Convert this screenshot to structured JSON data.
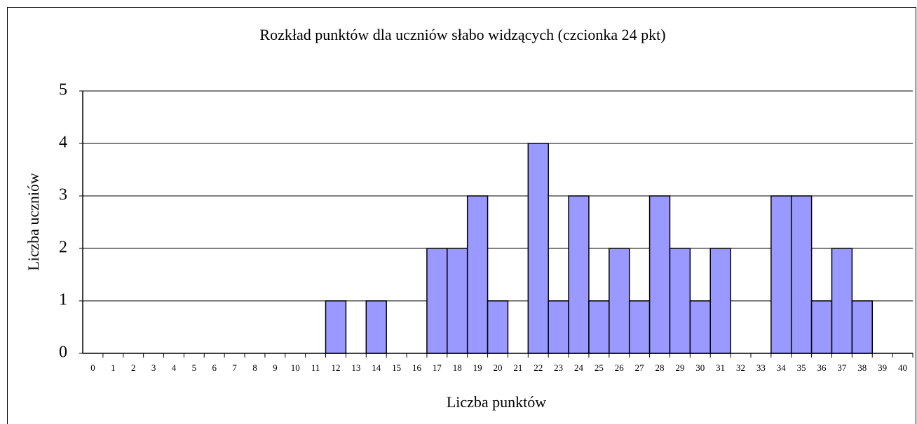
{
  "chart_data": {
    "type": "bar",
    "title": "Rozkład punktów dla uczniów słabo widzących (czcionka 24 pkt)",
    "x_label": "Liczba punktów",
    "y_label": "Liczba uczniów",
    "categories": [
      "0",
      "1",
      "2",
      "3",
      "4",
      "5",
      "6",
      "7",
      "8",
      "9",
      "10",
      "11",
      "12",
      "13",
      "14",
      "15",
      "16",
      "17",
      "18",
      "19",
      "20",
      "21",
      "22",
      "23",
      "24",
      "25",
      "26",
      "27",
      "28",
      "29",
      "30",
      "31",
      "32",
      "33",
      "34",
      "35",
      "36",
      "37",
      "38",
      "39",
      "40"
    ],
    "values": [
      0,
      0,
      0,
      0,
      0,
      0,
      0,
      0,
      0,
      0,
      0,
      0,
      1,
      0,
      1,
      0,
      0,
      2,
      2,
      3,
      1,
      0,
      4,
      1,
      3,
      1,
      2,
      1,
      3,
      2,
      1,
      2,
      0,
      0,
      3,
      3,
      1,
      2,
      1,
      0,
      0
    ],
    "color": "#9999ff",
    "ylim": [
      0,
      5
    ],
    "yticks": [
      0,
      1,
      2,
      3,
      4,
      5
    ],
    "grid": true
  }
}
